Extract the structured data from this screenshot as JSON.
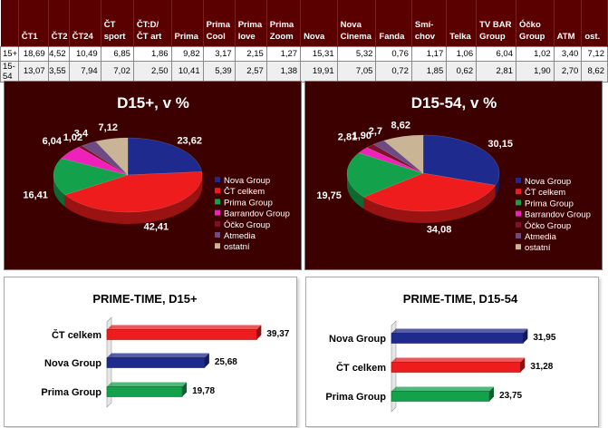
{
  "table": {
    "columns": [
      "ČT1",
      "ČT2",
      "ČT24",
      "ČT sport",
      "ČT:D/ ČT art",
      "Prima",
      "Prima Cool",
      "Prima love",
      "Prima Zoom",
      "Nova",
      "Nova Cinema",
      "Fanda",
      "Smí-chov",
      "Telka",
      "TV BAR Group",
      "Óčko Group",
      "ATM",
      "ost."
    ],
    "rows": [
      {
        "label": "15+",
        "values": [
          "18,69",
          "4,52",
          "10,49",
          "6,85",
          "1,86",
          "9,82",
          "3,17",
          "2,15",
          "1,27",
          "15,31",
          "5,32",
          "0,76",
          "1,17",
          "1,06",
          "6,04",
          "1,02",
          "3,40",
          "7,12"
        ]
      },
      {
        "label": "15-54",
        "values": [
          "13,07",
          "3,55",
          "7,94",
          "7,02",
          "2,50",
          "10,41",
          "5,39",
          "2,57",
          "1,38",
          "19,91",
          "7,05",
          "0,72",
          "1,85",
          "0,62",
          "2,81",
          "1,90",
          "2,70",
          "8,62"
        ]
      }
    ]
  },
  "chart_data": [
    {
      "type": "pie",
      "title": "D15+, v %",
      "categories": [
        "Nova Group",
        "ČT celkem",
        "Prima Group",
        "Barrandov Group",
        "Óčko Group",
        "Atmedia",
        "ostatní"
      ],
      "values": [
        23.62,
        42.41,
        16.41,
        6.04,
        1.02,
        3.4,
        7.12
      ],
      "labels": [
        "23,62",
        "42,41",
        "16,41",
        "6,04",
        "1,02",
        "3,4",
        "7,12"
      ],
      "colors": [
        "#1f2a8f",
        "#ee1c1c",
        "#14a14c",
        "#ee22bb",
        "#80112a",
        "#6e4a85",
        "#c9b596"
      ],
      "legend_position": "right"
    },
    {
      "type": "pie",
      "title": "D15-54, v %",
      "categories": [
        "Nova Group",
        "ČT celkem",
        "Prima Group",
        "Barrandov Group",
        "Óčko Group",
        "Atmedia",
        "ostatní"
      ],
      "values": [
        30.15,
        34.08,
        19.75,
        2.81,
        1.9,
        2.7,
        8.62
      ],
      "labels": [
        "30,15",
        "34,08",
        "19,75",
        "2,81",
        "1,90",
        "2,7",
        "8,62"
      ],
      "colors": [
        "#1f2a8f",
        "#ee1c1c",
        "#14a14c",
        "#ee22bb",
        "#80112a",
        "#6e4a85",
        "#c9b596"
      ],
      "legend_position": "right"
    },
    {
      "type": "bar",
      "orientation": "horizontal",
      "title": "PRIME-TIME, D15+",
      "categories": [
        "ČT celkem",
        "Nova Group",
        "Prima Group"
      ],
      "values": [
        39.37,
        25.68,
        19.78
      ],
      "labels": [
        "39,37",
        "25,68",
        "19,78"
      ],
      "colors": [
        "#ee1c1c",
        "#1f2a8f",
        "#14a14c"
      ],
      "xlim": [
        0,
        45
      ]
    },
    {
      "type": "bar",
      "orientation": "horizontal",
      "title": "PRIME-TIME, D15-54",
      "categories": [
        "Nova Group",
        "ČT celkem",
        "Prima Group"
      ],
      "values": [
        31.95,
        31.28,
        23.75
      ],
      "labels": [
        "31,95",
        "31,28",
        "23,75"
      ],
      "colors": [
        "#1f2a8f",
        "#ee1c1c",
        "#14a14c"
      ],
      "xlim": [
        0,
        45
      ]
    }
  ]
}
